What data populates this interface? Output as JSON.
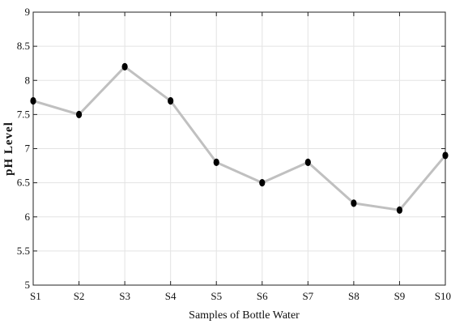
{
  "chart_data": {
    "type": "line",
    "categories": [
      "S1",
      "S2",
      "S3",
      "S4",
      "S5",
      "S6",
      "S7",
      "S8",
      "S9",
      "S10"
    ],
    "series": [
      {
        "values": [
          7.7,
          7.5,
          8.2,
          7.7,
          6.8,
          6.5,
          6.8,
          6.2,
          6.1,
          6.9
        ]
      }
    ],
    "xlabel": "Samples of Bottle Water",
    "ylabel": "pH Level",
    "ylim": [
      5,
      9
    ],
    "yticks": [
      "5",
      "5.5",
      "6",
      "6.5",
      "7",
      "7.5",
      "8",
      "8.5",
      "9"
    ],
    "grid": true,
    "line_color": "#c0c0c0",
    "marker_color": "#000000"
  }
}
